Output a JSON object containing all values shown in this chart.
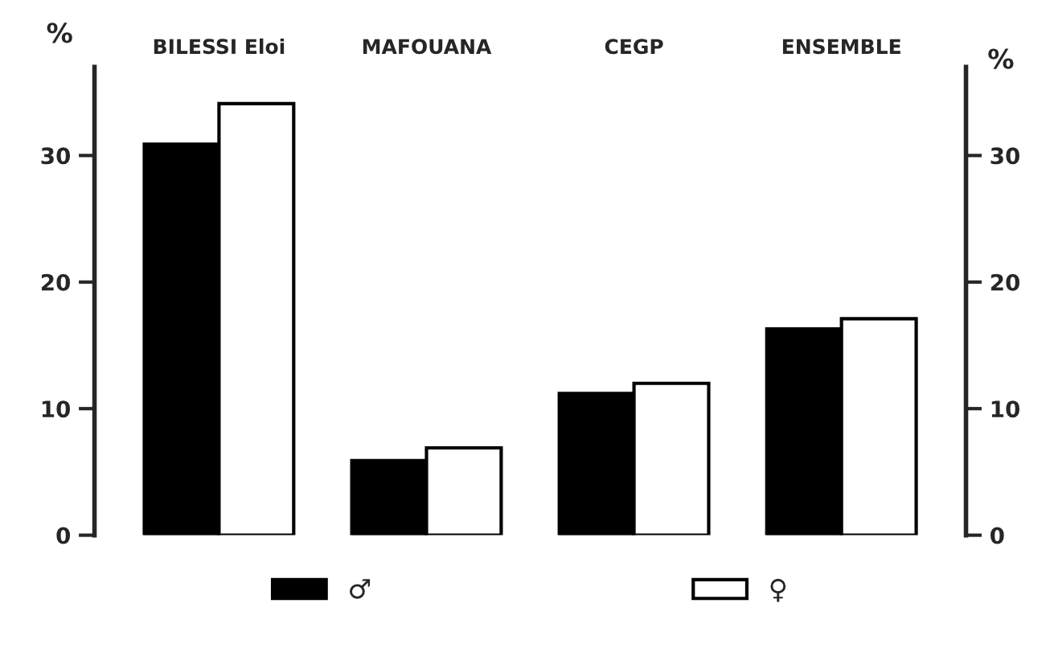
{
  "chart_data": {
    "type": "bar",
    "categories": [
      "BILESSI Eloi",
      "MAFOUANA",
      "CEGP",
      "ENSEMBLE"
    ],
    "series": [
      {
        "name": "♂",
        "color": "#000000",
        "values": [
          30.9,
          5.9,
          11.2,
          16.3
        ]
      },
      {
        "name": "♀",
        "color": "#ffffff",
        "values": [
          34.1,
          6.9,
          12.0,
          17.1
        ]
      }
    ],
    "ylabel": "%",
    "y2label": "%",
    "ylim": [
      0,
      37
    ],
    "yticks": [
      0,
      10,
      20,
      30
    ],
    "y2lim": [
      0,
      37
    ],
    "y2ticks": [
      0,
      10,
      20,
      30
    ],
    "grid": false,
    "legend": "bottom"
  }
}
